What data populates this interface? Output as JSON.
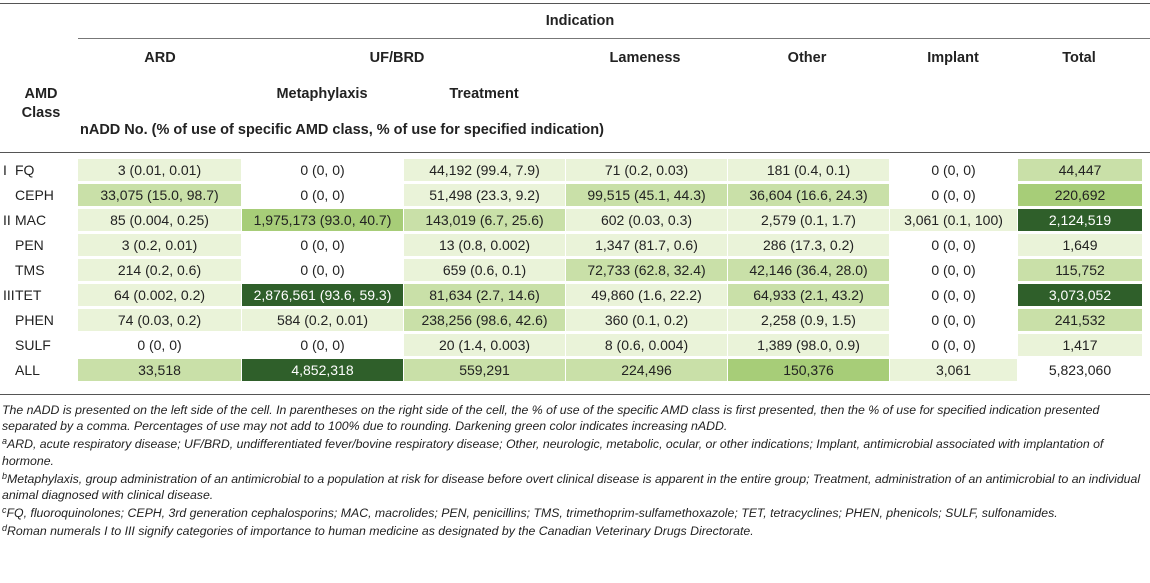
{
  "header": {
    "indication": "Indication",
    "amd_class_line1": "AMD",
    "amd_class_line2": "Class",
    "columns": [
      "ARD",
      "UF/BRD",
      "Lameness",
      "Other",
      "Implant",
      "Total"
    ],
    "sub_columns": [
      "Metaphylaxis",
      "Treatment"
    ],
    "measure": "nADD No. (% of use of specific AMD class, % of use for specified indication)"
  },
  "colors": {
    "shade1": "#eaf3d9",
    "shade2": "#c9e0a8",
    "shade3": "#a7cd78",
    "shade4": "#2f5f2a"
  },
  "rows": [
    {
      "roman": "I",
      "cls": "FQ",
      "cells": [
        {
          "text": "3 (0.01, 0.01)",
          "shade": "shade1"
        },
        {
          "text": "0 (0, 0)",
          "shade": ""
        },
        {
          "text": "44,192 (99.4, 7.9)",
          "shade": "shade1"
        },
        {
          "text": "71 (0.2, 0.03)",
          "shade": "shade1"
        },
        {
          "text": "181 (0.4, 0.1)",
          "shade": "shade1"
        },
        {
          "text": "0 (0, 0)",
          "shade": ""
        },
        {
          "text": "44,447",
          "shade": "shade2"
        }
      ]
    },
    {
      "roman": "",
      "cls": "CEPH",
      "cells": [
        {
          "text": "33,075 (15.0, 98.7)",
          "shade": "shade2"
        },
        {
          "text": "0 (0, 0)",
          "shade": ""
        },
        {
          "text": "51,498 (23.3, 9.2)",
          "shade": "shade1"
        },
        {
          "text": "99,515 (45.1, 44.3)",
          "shade": "shade2"
        },
        {
          "text": "36,604 (16.6, 24.3)",
          "shade": "shade2"
        },
        {
          "text": "0 (0, 0)",
          "shade": ""
        },
        {
          "text": "220,692",
          "shade": "shade3"
        }
      ]
    },
    {
      "roman": "II",
      "cls": "MAC",
      "cells": [
        {
          "text": "85 (0.004, 0.25)",
          "shade": "shade1"
        },
        {
          "text": "1,975,173 (93.0, 40.7)",
          "shade": "shade3"
        },
        {
          "text": "143,019 (6.7, 25.6)",
          "shade": "shade2"
        },
        {
          "text": "602 (0.03, 0.3)",
          "shade": "shade1"
        },
        {
          "text": "2,579 (0.1, 1.7)",
          "shade": "shade1"
        },
        {
          "text": "3,061 (0.1, 100)",
          "shade": "shade1"
        },
        {
          "text": "2,124,519",
          "shade": "shade4"
        }
      ]
    },
    {
      "roman": "",
      "cls": "PEN",
      "cells": [
        {
          "text": "3 (0.2, 0.01)",
          "shade": "shade1"
        },
        {
          "text": "0 (0, 0)",
          "shade": ""
        },
        {
          "text": "13 (0.8, 0.002)",
          "shade": "shade1"
        },
        {
          "text": "1,347 (81.7, 0.6)",
          "shade": "shade1"
        },
        {
          "text": "286 (17.3, 0.2)",
          "shade": "shade1"
        },
        {
          "text": "0 (0, 0)",
          "shade": ""
        },
        {
          "text": "1,649",
          "shade": "shade1"
        }
      ]
    },
    {
      "roman": "",
      "cls": "TMS",
      "cells": [
        {
          "text": "214 (0.2, 0.6)",
          "shade": "shade1"
        },
        {
          "text": "0 (0, 0)",
          "shade": ""
        },
        {
          "text": "659 (0.6, 0.1)",
          "shade": "shade1"
        },
        {
          "text": "72,733 (62.8, 32.4)",
          "shade": "shade2"
        },
        {
          "text": "42,146 (36.4, 28.0)",
          "shade": "shade2"
        },
        {
          "text": "0 (0, 0)",
          "shade": ""
        },
        {
          "text": "115,752",
          "shade": "shade2"
        }
      ]
    },
    {
      "roman": "III",
      "cls": "TET",
      "cells": [
        {
          "text": "64 (0.002, 0.2)",
          "shade": "shade1"
        },
        {
          "text": "2,876,561 (93.6, 59.3)",
          "shade": "shade4"
        },
        {
          "text": "81,634 (2.7, 14.6)",
          "shade": "shade2"
        },
        {
          "text": "49,860 (1.6, 22.2)",
          "shade": "shade1"
        },
        {
          "text": "64,933 (2.1, 43.2)",
          "shade": "shade2"
        },
        {
          "text": "0 (0, 0)",
          "shade": ""
        },
        {
          "text": "3,073,052",
          "shade": "shade4"
        }
      ]
    },
    {
      "roman": "",
      "cls": "PHEN",
      "cells": [
        {
          "text": "74 (0.03, 0.2)",
          "shade": "shade1"
        },
        {
          "text": "584 (0.2, 0.01)",
          "shade": "shade1"
        },
        {
          "text": "238,256 (98.6, 42.6)",
          "shade": "shade2"
        },
        {
          "text": "360 (0.1, 0.2)",
          "shade": "shade1"
        },
        {
          "text": "2,258 (0.9, 1.5)",
          "shade": "shade1"
        },
        {
          "text": "0 (0, 0)",
          "shade": ""
        },
        {
          "text": "241,532",
          "shade": "shade2"
        }
      ]
    },
    {
      "roman": "",
      "cls": "SULF",
      "cells": [
        {
          "text": "0 (0, 0)",
          "shade": ""
        },
        {
          "text": "0 (0, 0)",
          "shade": ""
        },
        {
          "text": "20 (1.4, 0.003)",
          "shade": "shade1"
        },
        {
          "text": "8 (0.6, 0.004)",
          "shade": "shade1"
        },
        {
          "text": "1,389 (98.0, 0.9)",
          "shade": "shade1"
        },
        {
          "text": "0 (0, 0)",
          "shade": ""
        },
        {
          "text": "1,417",
          "shade": "shade1"
        }
      ]
    },
    {
      "roman": "",
      "cls": "ALL",
      "cells": [
        {
          "text": "33,518",
          "shade": "shade2"
        },
        {
          "text": "4,852,318",
          "shade": "shade4"
        },
        {
          "text": "559,291",
          "shade": "shade2"
        },
        {
          "text": "224,496",
          "shade": "shade2"
        },
        {
          "text": "150,376",
          "shade": "shade3"
        },
        {
          "text": "3,061",
          "shade": "shade1"
        },
        {
          "text": "5,823,060",
          "shade": ""
        }
      ]
    }
  ],
  "footnotes": {
    "main": "The nADD is presented on the left side of the cell. In parentheses on the right side of the cell, the % of use of the specific AMD class is first presented, then the % of use for specified indication presented separated by a comma. Percentages of use may not add to 100% due to rounding. Darkening green color indicates increasing nADD.",
    "a_mark": "a",
    "a": "ARD, acute respiratory disease; UF/BRD, undifferentiated fever/bovine respiratory disease; Other, neurologic, metabolic, ocular, or other indications; Implant, antimicrobial associated with implantation of hormone.",
    "b_mark": "b",
    "b": "Metaphylaxis, group administration of an antimicrobial to a population at risk for disease before overt clinical disease is apparent in the entire group; Treatment, administration of an antimicrobial to an individual animal diagnosed with clinical disease.",
    "c_mark": "c",
    "c": "FQ, fluoroquinolones; CEPH, 3rd generation cephalosporins; MAC, macrolides; PEN, penicillins; TMS, trimethoprim-sulfamethoxazole; TET, tetracyclines; PHEN, phenicols; SULF, sulfonamides.",
    "d_mark": "d",
    "d": "Roman numerals I to III signify categories of importance to human medicine as designated by the Canadian Veterinary Drugs Directorate."
  }
}
